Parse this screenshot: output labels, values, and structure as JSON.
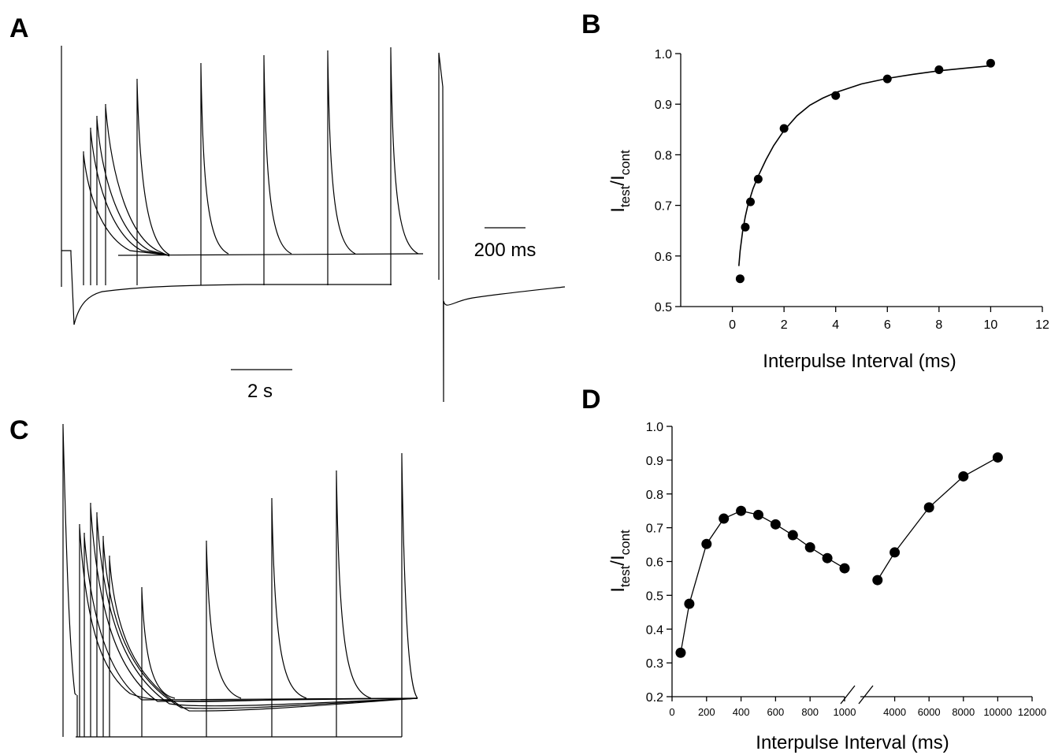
{
  "panels": {
    "a": {
      "letter": "A",
      "scale_bar_1": "2 s",
      "scale_bar_2": "200 ms"
    },
    "b": {
      "letter": "B"
    },
    "c": {
      "letter": "C"
    },
    "d": {
      "letter": "D"
    }
  },
  "chart_data": [
    {
      "id": "B",
      "type": "scatter",
      "ylabel_main": "I",
      "ylabel_sub1": "test",
      "ylabel_mid": "/I",
      "ylabel_sub2": "cont",
      "xlabel": "Interpulse Interval (ms)",
      "xlim": [
        -2,
        12
      ],
      "ylim": [
        0.5,
        1.0
      ],
      "xticks": [
        0,
        2,
        4,
        6,
        8,
        10,
        12
      ],
      "xtick_labels": [
        "0",
        "2",
        "4",
        "6",
        "8",
        "10",
        "12"
      ],
      "yticks": [
        0.5,
        0.6,
        0.7,
        0.8,
        0.9,
        1.0
      ],
      "ytick_labels": [
        "0.5",
        "0.6",
        "0.7",
        "0.8",
        "0.9",
        "1.0"
      ],
      "points": {
        "x": [
          0.3,
          0.5,
          0.7,
          1.0,
          2.0,
          4.0,
          6.0,
          8.0,
          10.0
        ],
        "y": [
          0.555,
          0.657,
          0.707,
          0.752,
          0.852,
          0.917,
          0.95,
          0.968,
          0.981
        ]
      },
      "fit_curve": {
        "x": [
          0.25,
          0.3,
          0.4,
          0.5,
          0.6,
          0.8,
          1.0,
          1.3,
          1.6,
          2.0,
          2.5,
          3.0,
          3.5,
          4.0,
          5.0,
          6.0,
          7.0,
          8.0,
          9.0,
          10.0
        ],
        "y": [
          0.58,
          0.61,
          0.65,
          0.678,
          0.7,
          0.733,
          0.758,
          0.79,
          0.818,
          0.848,
          0.877,
          0.898,
          0.912,
          0.923,
          0.94,
          0.951,
          0.959,
          0.966,
          0.971,
          0.976
        ]
      }
    },
    {
      "id": "D",
      "type": "line",
      "ylabel_main": "I",
      "ylabel_sub1": "test",
      "ylabel_mid": "/I",
      "ylabel_sub2": "cont",
      "xlabel": "Interpulse Interval (ms)",
      "ylim": [
        0.2,
        1.0
      ],
      "yticks": [
        0.2,
        0.3,
        0.4,
        0.5,
        0.6,
        0.7,
        0.8,
        0.9,
        1.0
      ],
      "ytick_labels": [
        "0.2",
        "0.3",
        "0.4",
        "0.5",
        "0.6",
        "0.7",
        "0.8",
        "0.9",
        "1.0"
      ],
      "axis_break": true,
      "segment_1": {
        "xlim": [
          0,
          1000
        ],
        "xticks": [
          0,
          200,
          400,
          600,
          800,
          1000
        ],
        "xtick_labels": [
          "0",
          "200",
          "400",
          "600",
          "800",
          "1000"
        ],
        "x": [
          50,
          100,
          200,
          300,
          400,
          500,
          600,
          700,
          800,
          900,
          1000
        ],
        "y": [
          0.33,
          0.475,
          0.652,
          0.727,
          0.75,
          0.738,
          0.71,
          0.678,
          0.642,
          0.61,
          0.58
        ]
      },
      "segment_2": {
        "xlim": [
          2000,
          12000
        ],
        "xticks": [
          4000,
          6000,
          8000,
          10000,
          12000
        ],
        "xtick_labels": [
          "4000",
          "6000",
          "8000",
          "10000",
          "12000"
        ],
        "x": [
          3000,
          4000,
          6000,
          8000,
          10000
        ],
        "y": [
          0.545,
          0.627,
          0.76,
          0.852,
          0.908
        ]
      }
    }
  ]
}
